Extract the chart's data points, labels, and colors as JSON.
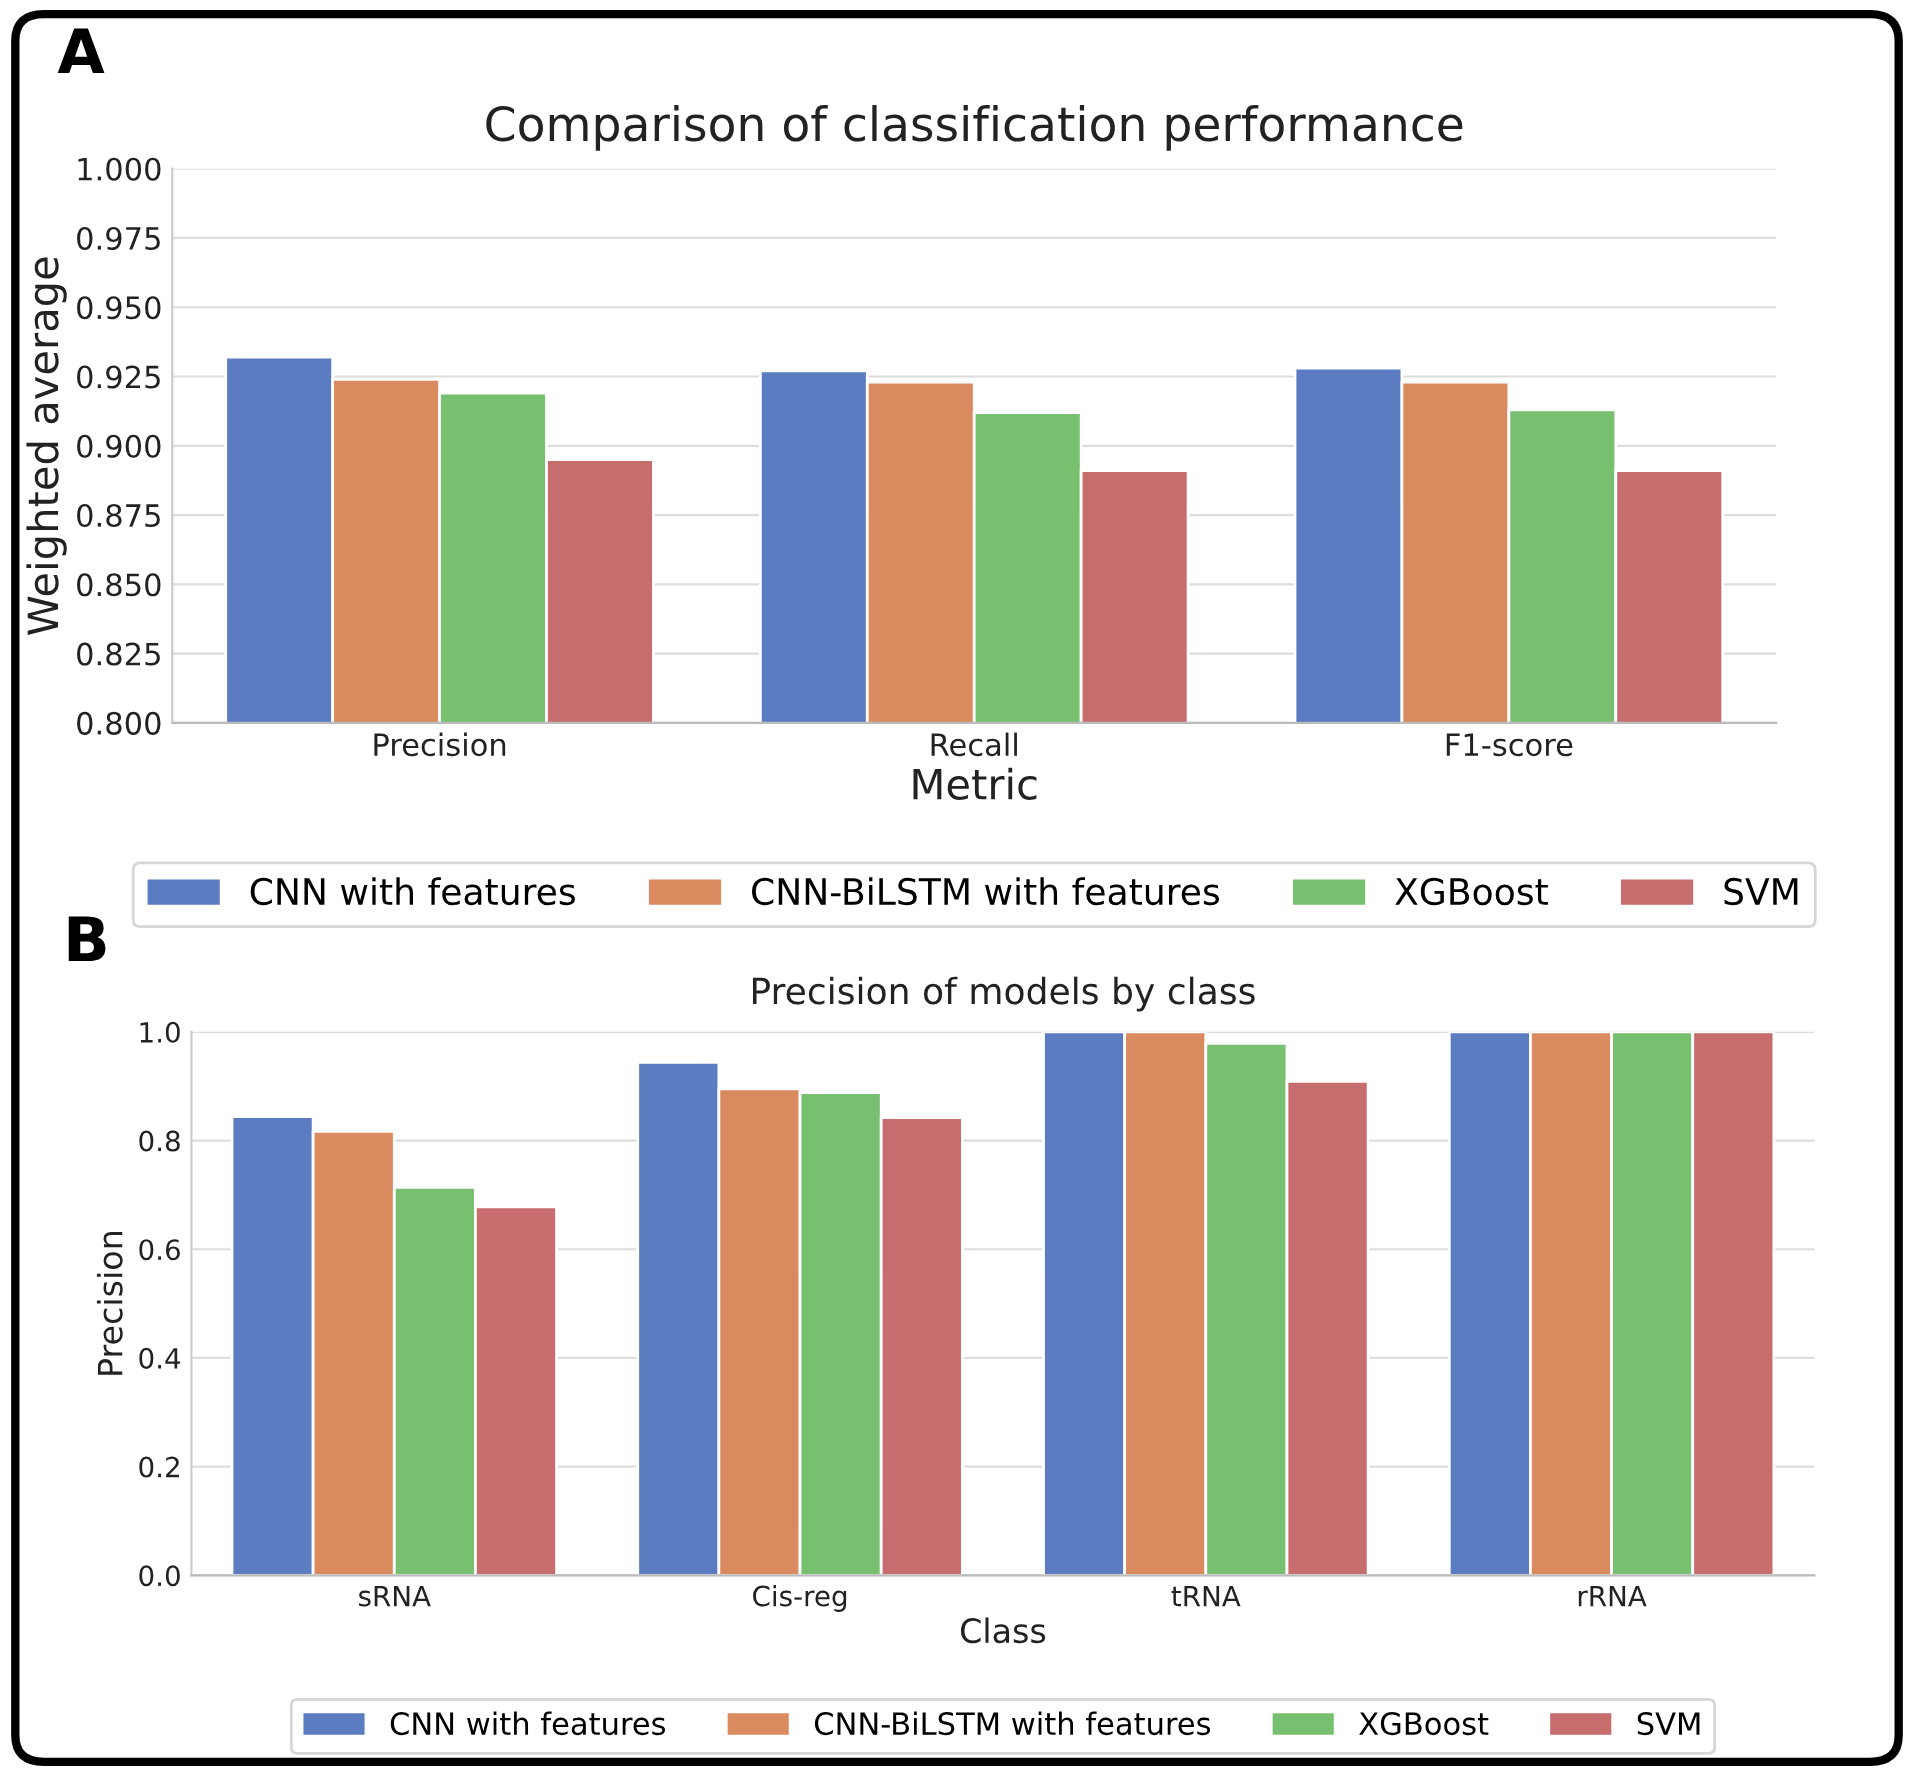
{
  "chart_data": [
    {
      "type": "bar",
      "title": "Comparison of classification performance",
      "xlabel": "Metric",
      "ylabel": "Weighted average",
      "annotations": [
        "A"
      ],
      "categories": [
        "Precision",
        "Recall",
        "F1-score"
      ],
      "series": [
        {
          "name": "CNN with features",
          "color": "#5b7cc0",
          "values": [
            0.932,
            0.927,
            0.928
          ]
        },
        {
          "name": "CNN-BiLSTM with features",
          "color": "#d98a5e",
          "values": [
            0.924,
            0.923,
            0.923
          ]
        },
        {
          "name": "XGBoost",
          "color": "#77c070",
          "values": [
            0.919,
            0.912,
            0.913
          ]
        },
        {
          "name": "SVM",
          "color": "#c76d6d",
          "values": [
            0.895,
            0.891,
            0.891
          ]
        }
      ],
      "ylim": [
        0.8,
        1.0
      ],
      "yticks": [
        {
          "value": 0.8,
          "label": "0.800"
        },
        {
          "value": 0.825,
          "label": "0.825"
        },
        {
          "value": 0.85,
          "label": "0.850"
        },
        {
          "value": 0.875,
          "label": "0.875"
        },
        {
          "value": 0.9,
          "label": "0.900"
        },
        {
          "value": 0.925,
          "label": "0.925"
        },
        {
          "value": 0.95,
          "label": "0.950"
        },
        {
          "value": 0.975,
          "label": "0.975"
        },
        {
          "value": 1.0,
          "label": "1.000"
        }
      ],
      "grid": "y",
      "legend": "bottom"
    },
    {
      "type": "bar",
      "title": "Precision of models by class",
      "xlabel": "Class",
      "ylabel": "Precision",
      "annotations": [
        "B"
      ],
      "categories": [
        "sRNA",
        "Cis-reg",
        "tRNA",
        "rRNA"
      ],
      "series": [
        {
          "name": "CNN with features",
          "color": "#5b7cc0",
          "values": [
            0.844,
            0.944,
            1.0,
            1.0
          ]
        },
        {
          "name": "CNN-BiLSTM with features",
          "color": "#d98a5e",
          "values": [
            0.817,
            0.895,
            1.0,
            1.0
          ]
        },
        {
          "name": "XGBoost",
          "color": "#77c070",
          "values": [
            0.714,
            0.888,
            0.979,
            1.0
          ]
        },
        {
          "name": "SVM",
          "color": "#c76d6d",
          "values": [
            0.678,
            0.842,
            0.909,
            1.0
          ]
        }
      ],
      "ylim": [
        0.0,
        1.0
      ],
      "yticks": [
        {
          "value": 0.0,
          "label": "0.0"
        },
        {
          "value": 0.2,
          "label": "0.2"
        },
        {
          "value": 0.4,
          "label": "0.4"
        },
        {
          "value": 0.6,
          "label": "0.6"
        },
        {
          "value": 0.8,
          "label": "0.8"
        },
        {
          "value": 1.0,
          "label": "1.0"
        }
      ],
      "grid": "y",
      "legend": "bottom"
    }
  ]
}
